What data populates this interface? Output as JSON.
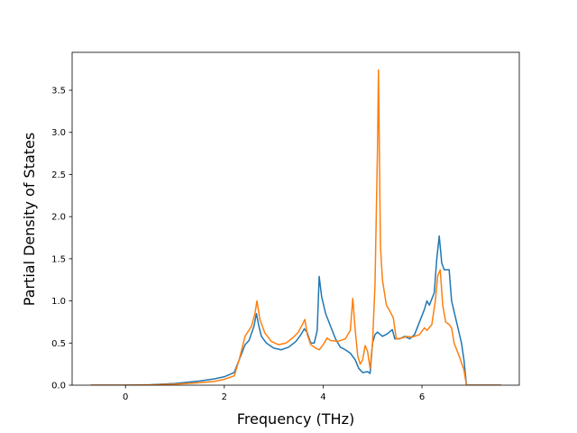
{
  "chart_data": {
    "type": "line",
    "title": "",
    "xlabel": "Frequency (THz)",
    "ylabel": "Partial Density of States",
    "xlim": [
      -1.08,
      7.97
    ],
    "ylim": [
      0,
      3.95
    ],
    "x_ticks": [
      0,
      2,
      4,
      6
    ],
    "x_tick_labels": [
      "0",
      "2",
      "4",
      "6"
    ],
    "y_ticks": [
      0.0,
      0.5,
      1.0,
      1.5,
      2.0,
      2.5,
      3.0,
      3.5
    ],
    "y_tick_labels": [
      "0.0",
      "0.5",
      "1.0",
      "1.5",
      "2.0",
      "2.5",
      "3.0",
      "3.5"
    ],
    "grid": false,
    "legend": "none",
    "series": [
      {
        "color": "#1f77b4",
        "points": [
          [
            -0.7,
            0
          ],
          [
            0,
            0
          ],
          [
            0.5,
            0.005
          ],
          [
            1.0,
            0.02
          ],
          [
            1.5,
            0.05
          ],
          [
            1.8,
            0.075
          ],
          [
            2.0,
            0.1
          ],
          [
            2.2,
            0.15
          ],
          [
            2.3,
            0.3
          ],
          [
            2.42,
            0.48
          ],
          [
            2.5,
            0.53
          ],
          [
            2.6,
            0.7
          ],
          [
            2.65,
            0.85
          ],
          [
            2.7,
            0.7
          ],
          [
            2.75,
            0.58
          ],
          [
            2.85,
            0.5
          ],
          [
            3.0,
            0.44
          ],
          [
            3.15,
            0.42
          ],
          [
            3.3,
            0.45
          ],
          [
            3.45,
            0.52
          ],
          [
            3.55,
            0.6
          ],
          [
            3.62,
            0.67
          ],
          [
            3.68,
            0.62
          ],
          [
            3.75,
            0.5
          ],
          [
            3.82,
            0.5
          ],
          [
            3.88,
            0.65
          ],
          [
            3.92,
            1.29
          ],
          [
            3.97,
            1.05
          ],
          [
            4.05,
            0.85
          ],
          [
            4.15,
            0.7
          ],
          [
            4.25,
            0.55
          ],
          [
            4.35,
            0.45
          ],
          [
            4.45,
            0.42
          ],
          [
            4.55,
            0.38
          ],
          [
            4.65,
            0.3
          ],
          [
            4.72,
            0.2
          ],
          [
            4.8,
            0.15
          ],
          [
            4.9,
            0.16
          ],
          [
            4.95,
            0.14
          ],
          [
            5.0,
            0.5
          ],
          [
            5.05,
            0.6
          ],
          [
            5.1,
            0.63
          ],
          [
            5.2,
            0.58
          ],
          [
            5.3,
            0.61
          ],
          [
            5.4,
            0.66
          ],
          [
            5.45,
            0.55
          ],
          [
            5.55,
            0.55
          ],
          [
            5.65,
            0.58
          ],
          [
            5.75,
            0.55
          ],
          [
            5.85,
            0.6
          ],
          [
            5.95,
            0.75
          ],
          [
            6.05,
            0.9
          ],
          [
            6.1,
            1.0
          ],
          [
            6.15,
            0.95
          ],
          [
            6.25,
            1.1
          ],
          [
            6.3,
            1.5
          ],
          [
            6.35,
            1.77
          ],
          [
            6.4,
            1.45
          ],
          [
            6.45,
            1.37
          ],
          [
            6.55,
            1.37
          ],
          [
            6.6,
            1.0
          ],
          [
            6.7,
            0.75
          ],
          [
            6.8,
            0.5
          ],
          [
            6.85,
            0.3
          ],
          [
            6.9,
            0
          ],
          [
            7.6,
            0
          ]
        ]
      },
      {
        "color": "#ff7f0e",
        "points": [
          [
            -0.7,
            0
          ],
          [
            0,
            0
          ],
          [
            0.5,
            0.003
          ],
          [
            1.0,
            0.012
          ],
          [
            1.5,
            0.03
          ],
          [
            1.8,
            0.045
          ],
          [
            2.0,
            0.07
          ],
          [
            2.2,
            0.11
          ],
          [
            2.3,
            0.3
          ],
          [
            2.42,
            0.58
          ],
          [
            2.55,
            0.7
          ],
          [
            2.62,
            0.85
          ],
          [
            2.66,
            1.0
          ],
          [
            2.72,
            0.78
          ],
          [
            2.82,
            0.62
          ],
          [
            2.95,
            0.52
          ],
          [
            3.1,
            0.48
          ],
          [
            3.25,
            0.5
          ],
          [
            3.4,
            0.57
          ],
          [
            3.5,
            0.63
          ],
          [
            3.58,
            0.72
          ],
          [
            3.63,
            0.78
          ],
          [
            3.68,
            0.6
          ],
          [
            3.75,
            0.48
          ],
          [
            3.85,
            0.44
          ],
          [
            3.92,
            0.42
          ],
          [
            4.0,
            0.48
          ],
          [
            4.08,
            0.56
          ],
          [
            4.15,
            0.53
          ],
          [
            4.3,
            0.52
          ],
          [
            4.45,
            0.55
          ],
          [
            4.55,
            0.65
          ],
          [
            4.6,
            1.03
          ],
          [
            4.65,
            0.65
          ],
          [
            4.7,
            0.35
          ],
          [
            4.75,
            0.25
          ],
          [
            4.8,
            0.3
          ],
          [
            4.85,
            0.47
          ],
          [
            4.9,
            0.4
          ],
          [
            4.95,
            0.2
          ],
          [
            5.0,
            0.5
          ],
          [
            5.05,
            1.2
          ],
          [
            5.1,
            2.8
          ],
          [
            5.12,
            3.74
          ],
          [
            5.16,
            1.65
          ],
          [
            5.2,
            1.25
          ],
          [
            5.28,
            0.95
          ],
          [
            5.35,
            0.88
          ],
          [
            5.42,
            0.8
          ],
          [
            5.48,
            0.55
          ],
          [
            5.6,
            0.56
          ],
          [
            5.7,
            0.58
          ],
          [
            5.8,
            0.57
          ],
          [
            5.95,
            0.6
          ],
          [
            6.05,
            0.68
          ],
          [
            6.1,
            0.65
          ],
          [
            6.2,
            0.72
          ],
          [
            6.27,
            1.0
          ],
          [
            6.32,
            1.3
          ],
          [
            6.37,
            1.37
          ],
          [
            6.42,
            0.95
          ],
          [
            6.48,
            0.75
          ],
          [
            6.55,
            0.72
          ],
          [
            6.6,
            0.68
          ],
          [
            6.65,
            0.5
          ],
          [
            6.75,
            0.35
          ],
          [
            6.85,
            0.18
          ],
          [
            6.9,
            0
          ],
          [
            7.6,
            0
          ]
        ]
      }
    ]
  }
}
